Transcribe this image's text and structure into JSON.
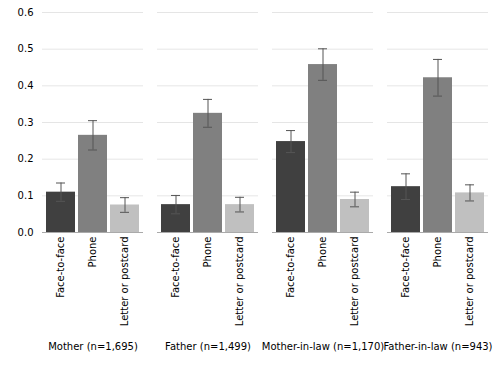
{
  "chart_data": {
    "type": "bar",
    "categories": [
      "Mother (n=1,695)",
      "Father (n=1,499)",
      "Mother-in-law (n=1,170)",
      "Father-in-law (n=943)"
    ],
    "series": [
      {
        "name": "Face-to-face",
        "color": "#404040",
        "values": [
          0.11,
          0.076,
          0.248,
          0.125
        ],
        "errors": [
          0.025,
          0.025,
          0.03,
          0.035
        ]
      },
      {
        "name": "Phone",
        "color": "#808080",
        "values": [
          0.265,
          0.325,
          0.458,
          0.422
        ],
        "errors": [
          0.04,
          0.038,
          0.043,
          0.05
        ]
      },
      {
        "name": "Letter or postcard",
        "color": "#c0c0c0",
        "values": [
          0.075,
          0.076,
          0.09,
          0.108
        ],
        "errors": [
          0.02,
          0.02,
          0.02,
          0.022
        ]
      }
    ],
    "ylim": [
      0,
      0.6
    ],
    "yticks": [
      {
        "value": 0,
        "label": "0.0"
      },
      0.1,
      0.2,
      0.3,
      0.4,
      0.5,
      0.6
    ],
    "grid": true
  }
}
